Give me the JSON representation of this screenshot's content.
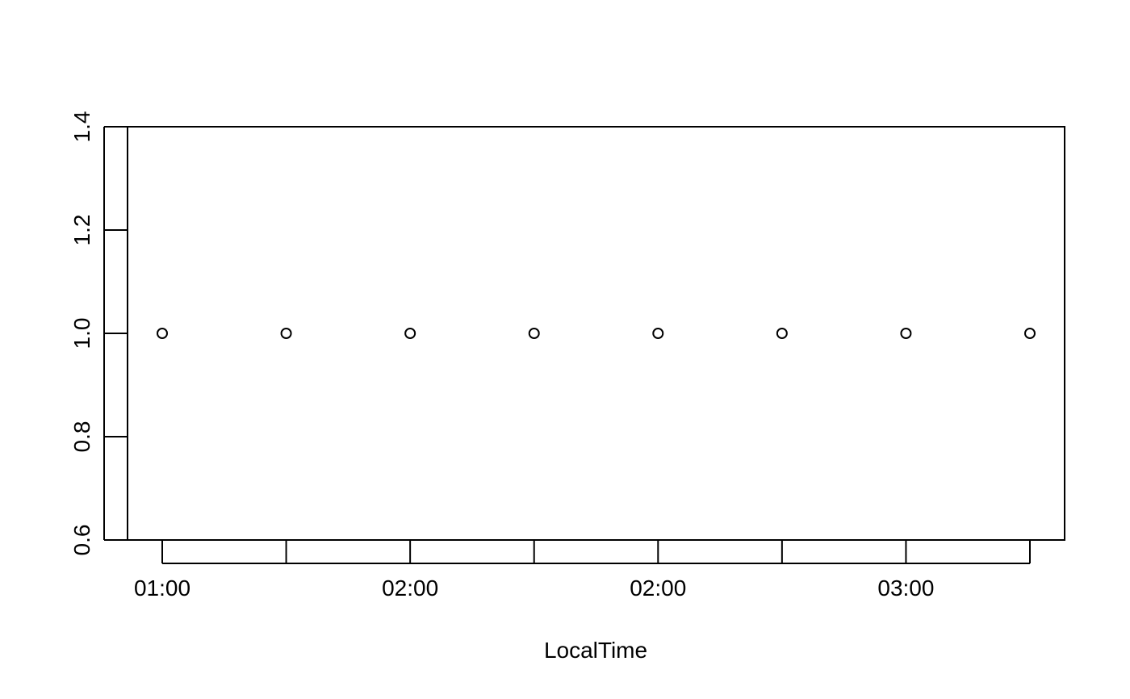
{
  "chart_data": {
    "type": "scatter",
    "title": "",
    "xlabel": "LocalTime",
    "ylabel": "",
    "x": [
      0,
      1,
      2,
      3,
      4,
      5,
      6,
      7
    ],
    "y": [
      1.0,
      1.0,
      1.0,
      1.0,
      1.0,
      1.0,
      1.0,
      1.0
    ],
    "xlim": [
      -0.28,
      7.28
    ],
    "ylim": [
      0.6,
      1.4
    ],
    "x_ticks": [
      0,
      1,
      2,
      3,
      4,
      5,
      6,
      7
    ],
    "x_tick_labels": [
      {
        "at": 0,
        "label": "01:00"
      },
      {
        "at": 2,
        "label": "02:00"
      },
      {
        "at": 4,
        "label": "02:00"
      },
      {
        "at": 6,
        "label": "03:00"
      }
    ],
    "y_ticks": [
      0.6,
      0.8,
      1.0,
      1.2,
      1.4
    ],
    "y_tick_labels": [
      "0.6",
      "0.8",
      "1.0",
      "1.2",
      "1.4"
    ],
    "marker": "open-circle",
    "grid": false,
    "colors": {
      "foreground": "#000000",
      "background": "#ffffff"
    }
  }
}
